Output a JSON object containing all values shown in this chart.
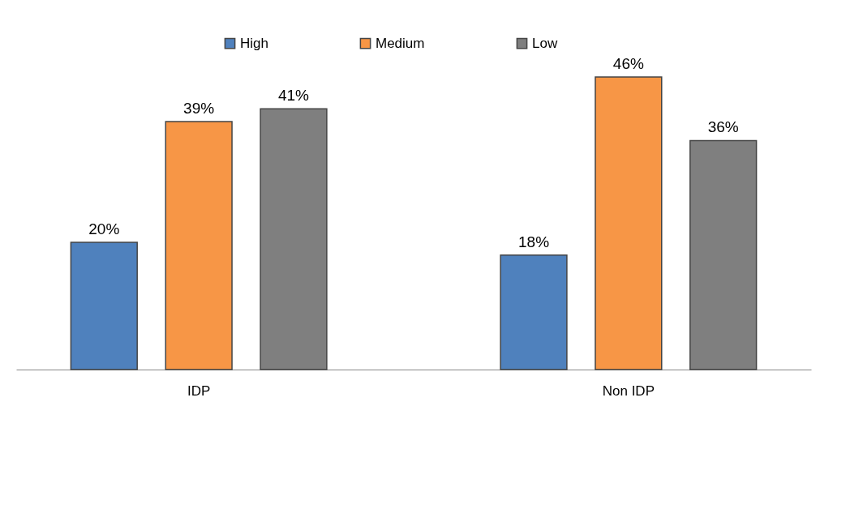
{
  "chart_data": {
    "type": "bar",
    "categories": [
      "IDP",
      "Non IDP"
    ],
    "series": [
      {
        "name": "High",
        "color": "#4f81bd",
        "values": [
          20,
          18
        ],
        "value_labels": [
          "20%",
          "18%"
        ]
      },
      {
        "name": "Medium",
        "color": "#f79646",
        "values": [
          39,
          46
        ],
        "value_labels": [
          "39%",
          "46%"
        ]
      },
      {
        "name": "Low",
        "color": "#7f7f7f",
        "values": [
          41,
          36
        ],
        "value_labels": [
          "41%",
          "36%"
        ]
      }
    ],
    "legend": "top"
  }
}
